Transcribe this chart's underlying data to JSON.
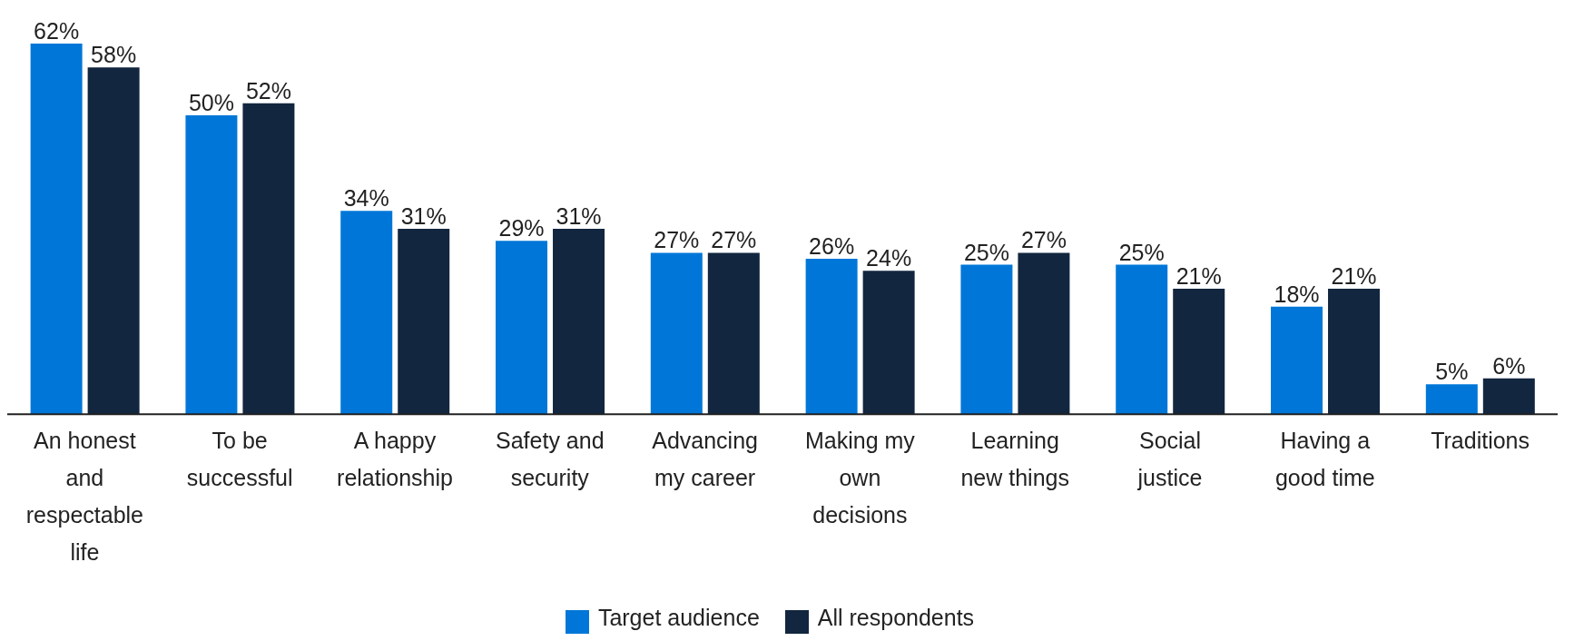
{
  "chart_data": {
    "type": "bar",
    "categories": [
      "An honest and respectable life",
      "To be successful",
      "A happy relationship",
      "Safety and security",
      "Advancing my career",
      "Making my own decisions",
      "Learning new things",
      "Social justice",
      "Having a good time",
      "Traditions"
    ],
    "series": [
      {
        "name": "Target audience",
        "color": "#0077d8",
        "values": [
          62,
          50,
          34,
          29,
          27,
          26,
          25,
          25,
          18,
          5
        ],
        "value_labels": [
          "62%",
          "50%",
          "34%",
          "29%",
          "27%",
          "26%",
          "25%",
          "25%",
          "18%",
          "5%"
        ]
      },
      {
        "name": "All respondents",
        "color": "#12263f",
        "values": [
          58,
          52,
          31,
          31,
          27,
          24,
          27,
          21,
          21,
          6
        ],
        "value_labels": [
          "58%",
          "52%",
          "31%",
          "31%",
          "27%",
          "24%",
          "27%",
          "21%",
          "21%",
          "6%"
        ]
      }
    ],
    "legend": "bottom",
    "grid": false
  }
}
